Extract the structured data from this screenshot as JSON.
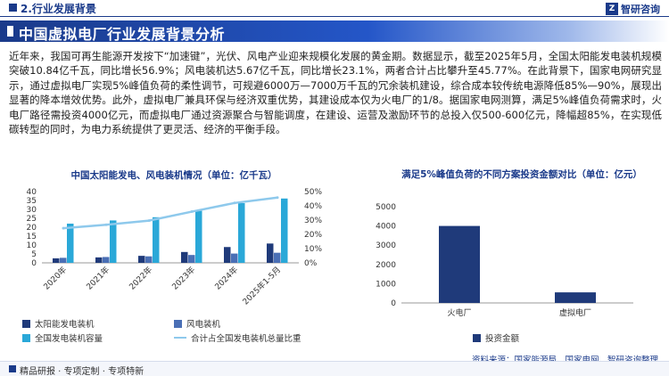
{
  "header": {
    "section": "2.行业发展背景",
    "logo_text": "智研咨询",
    "logo_mark": "Z",
    "banner_title": "中国虚拟电厂行业发展背景分析"
  },
  "body": {
    "paragraph": "近年来，我国可再生能源开发按下“加速键”，光伏、风电产业迎来规模化发展的黄金期。数据显示，截至2025年5月，全国太阳能发电装机规模突破10.84亿千瓦，同比增长56.9%；风电装机达5.67亿千瓦，同比增长23.1%，两者合计占比攀升至45.77%。在此背景下，国家电网研究显示，通过虚拟电厂实现5%峰值负荷的柔性调节，可规避6000万—7000万千瓦的冗余装机建设，综合成本较传统电源降低85%—90%，展现出显著的降本增效优势。此外，虚拟电厂兼具环保与经济双重优势，其建设成本仅为火电厂的1/8。据国家电网测算，满足5%峰值负荷需求时，火电厂路径需投资4000亿元，而虚拟电厂通过资源聚合与智能调度，在建设、运营及激励环节的总投入仅500-600亿元，降幅超85%，在实现低碳转型的同时，为电力系统提供了更灵活、经济的平衡手段。"
  },
  "colors": {
    "navy": "#1a3a8a",
    "solar": "#1f3a7a",
    "wind": "#4a6fb5",
    "total": "#2aa8d8",
    "share": "#8ec9ec",
    "invest": "#1f3a7a"
  },
  "chart_data": [
    {
      "type": "bar",
      "title": "中国太阳能发电、风电装机情况（单位：亿千瓦）",
      "categories": [
        "2020年",
        "2021年",
        "2022年",
        "2023年",
        "2024年",
        "2025年1-5月"
      ],
      "series": [
        {
          "name": "太阳能发电装机",
          "type": "bar",
          "axis": "left",
          "values": [
            2.53,
            3.06,
            3.93,
            6.09,
            8.87,
            10.84
          ]
        },
        {
          "name": "风电装机",
          "type": "bar",
          "axis": "left",
          "values": [
            2.82,
            3.28,
            3.65,
            4.41,
            5.21,
            5.67
          ]
        },
        {
          "name": "全国发电装机容量",
          "type": "bar",
          "axis": "left",
          "values": [
            22.0,
            23.8,
            25.6,
            29.2,
            33.5,
            36.1
          ]
        },
        {
          "name": "合计占全国发电装机总量比重",
          "type": "line",
          "axis": "right",
          "values": [
            24.3,
            26.7,
            29.6,
            35.9,
            42.0,
            45.77
          ]
        }
      ],
      "ylim": [
        0,
        40
      ],
      "y_ticks": [
        "0",
        "5",
        "10",
        "15",
        "20",
        "25",
        "30",
        "35",
        "40"
      ],
      "y2lim": [
        0,
        50
      ],
      "y2_ticks": [
        "0%",
        "10%",
        "20%",
        "30%",
        "40%",
        "50%"
      ],
      "legend": "bottom",
      "grid": false
    },
    {
      "type": "bar",
      "title": "满足5%峰值负荷的不同方案投资金额对比（单位：亿元）",
      "categories": [
        "火电厂",
        "虚拟电厂"
      ],
      "series": [
        {
          "name": "投资金额",
          "values": [
            4000,
            550
          ]
        }
      ],
      "ylim": [
        0,
        5000
      ],
      "y_ticks": [
        "0",
        "1000",
        "2000",
        "3000",
        "4000",
        "5000"
      ],
      "legend": "bottom",
      "grid": false
    }
  ],
  "source": "资料来源：国家能源局、国家电网、智研咨询整理",
  "footer": "精品研报 · 专项定制 · 专项特新"
}
